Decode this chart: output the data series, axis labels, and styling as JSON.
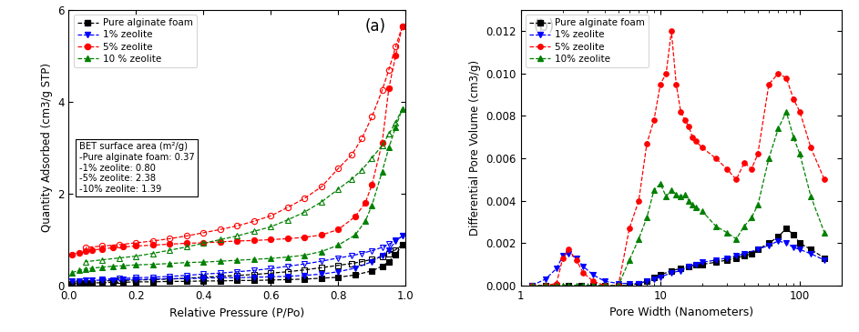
{
  "panel_a": {
    "title": "(a)",
    "xlabel": "Relative Pressure (P/Po)",
    "ylabel": "Quantity Adsorbed (cm3/g STP)",
    "xlim": [
      0.0,
      1.0
    ],
    "ylim": [
      0,
      6
    ],
    "yticks": [
      0,
      2,
      4,
      6
    ],
    "bet_text": "BET surface area (m²/g)\n-Pure alginate foam: 0.37\n-1% zeolite: 0.80\n-5% zeolite: 2.38\n-10% zeolite: 1.39",
    "series": {
      "pure_ads": {
        "x": [
          0.01,
          0.03,
          0.05,
          0.07,
          0.1,
          0.13,
          0.16,
          0.2,
          0.25,
          0.3,
          0.35,
          0.4,
          0.45,
          0.5,
          0.55,
          0.6,
          0.65,
          0.7,
          0.75,
          0.8,
          0.85,
          0.9,
          0.93,
          0.95,
          0.97,
          0.99
        ],
        "y": [
          0.04,
          0.05,
          0.05,
          0.06,
          0.06,
          0.07,
          0.07,
          0.08,
          0.08,
          0.09,
          0.09,
          0.1,
          0.1,
          0.11,
          0.11,
          0.12,
          0.13,
          0.14,
          0.16,
          0.18,
          0.23,
          0.32,
          0.42,
          0.52,
          0.68,
          0.88
        ],
        "color": "black",
        "marker": "s",
        "filled": true
      },
      "pure_des": {
        "x": [
          0.99,
          0.97,
          0.95,
          0.93,
          0.9,
          0.87,
          0.84,
          0.8,
          0.75,
          0.7,
          0.65,
          0.6,
          0.55,
          0.5,
          0.45,
          0.4,
          0.35,
          0.3,
          0.25,
          0.2,
          0.15,
          0.1
        ],
        "y": [
          0.88,
          0.78,
          0.7,
          0.63,
          0.57,
          0.52,
          0.48,
          0.44,
          0.39,
          0.34,
          0.3,
          0.27,
          0.24,
          0.22,
          0.2,
          0.18,
          0.16,
          0.14,
          0.13,
          0.12,
          0.11,
          0.1
        ],
        "color": "black",
        "marker": "s",
        "filled": false
      },
      "zeo1_ads": {
        "x": [
          0.01,
          0.03,
          0.05,
          0.07,
          0.1,
          0.13,
          0.16,
          0.2,
          0.25,
          0.3,
          0.35,
          0.4,
          0.45,
          0.5,
          0.55,
          0.6,
          0.65,
          0.7,
          0.75,
          0.8,
          0.85,
          0.9,
          0.93,
          0.95,
          0.97,
          0.99
        ],
        "y": [
          0.09,
          0.1,
          0.11,
          0.11,
          0.12,
          0.12,
          0.13,
          0.13,
          0.14,
          0.15,
          0.15,
          0.16,
          0.17,
          0.17,
          0.18,
          0.19,
          0.2,
          0.22,
          0.25,
          0.3,
          0.38,
          0.52,
          0.66,
          0.78,
          0.96,
          1.08
        ],
        "color": "blue",
        "marker": "v",
        "filled": true
      },
      "zeo1_des": {
        "x": [
          0.99,
          0.97,
          0.95,
          0.93,
          0.9,
          0.87,
          0.84,
          0.8,
          0.75,
          0.7,
          0.65,
          0.6,
          0.55,
          0.5,
          0.45,
          0.4,
          0.35,
          0.3,
          0.25,
          0.2,
          0.15,
          0.1
        ],
        "y": [
          1.08,
          0.98,
          0.9,
          0.83,
          0.76,
          0.7,
          0.65,
          0.6,
          0.53,
          0.47,
          0.42,
          0.37,
          0.33,
          0.3,
          0.27,
          0.25,
          0.22,
          0.2,
          0.18,
          0.17,
          0.15,
          0.14
        ],
        "color": "blue",
        "marker": "v",
        "filled": false
      },
      "zeo5_ads": {
        "x": [
          0.01,
          0.03,
          0.05,
          0.07,
          0.1,
          0.13,
          0.16,
          0.2,
          0.25,
          0.3,
          0.35,
          0.4,
          0.45,
          0.5,
          0.55,
          0.6,
          0.65,
          0.7,
          0.75,
          0.8,
          0.85,
          0.88,
          0.9,
          0.93,
          0.95,
          0.97,
          0.99
        ],
        "y": [
          0.68,
          0.72,
          0.75,
          0.77,
          0.8,
          0.82,
          0.84,
          0.86,
          0.88,
          0.9,
          0.92,
          0.93,
          0.95,
          0.97,
          0.98,
          1.0,
          1.02,
          1.05,
          1.1,
          1.22,
          1.5,
          1.8,
          2.2,
          3.1,
          4.3,
          5.0,
          5.65
        ],
        "color": "red",
        "marker": "o",
        "filled": true
      },
      "zeo5_des": {
        "x": [
          0.99,
          0.97,
          0.95,
          0.93,
          0.9,
          0.87,
          0.84,
          0.8,
          0.75,
          0.7,
          0.65,
          0.6,
          0.55,
          0.5,
          0.45,
          0.4,
          0.35,
          0.3,
          0.25,
          0.2,
          0.15,
          0.1,
          0.05
        ],
        "y": [
          5.65,
          5.2,
          4.7,
          4.25,
          3.68,
          3.2,
          2.85,
          2.55,
          2.15,
          1.9,
          1.7,
          1.52,
          1.4,
          1.3,
          1.22,
          1.15,
          1.08,
          1.02,
          0.97,
          0.93,
          0.89,
          0.86,
          0.83
        ],
        "color": "red",
        "marker": "o",
        "filled": false
      },
      "zeo10_ads": {
        "x": [
          0.01,
          0.03,
          0.05,
          0.07,
          0.1,
          0.13,
          0.16,
          0.2,
          0.25,
          0.3,
          0.35,
          0.4,
          0.45,
          0.5,
          0.55,
          0.6,
          0.65,
          0.7,
          0.75,
          0.8,
          0.85,
          0.88,
          0.9,
          0.93,
          0.95,
          0.97,
          0.99
        ],
        "y": [
          0.28,
          0.33,
          0.36,
          0.38,
          0.4,
          0.42,
          0.43,
          0.45,
          0.46,
          0.48,
          0.5,
          0.51,
          0.53,
          0.55,
          0.57,
          0.59,
          0.62,
          0.66,
          0.74,
          0.88,
          1.1,
          1.4,
          1.75,
          2.48,
          3.0,
          3.45,
          3.85
        ],
        "color": "green",
        "marker": "^",
        "filled": true
      },
      "zeo10_des": {
        "x": [
          0.99,
          0.97,
          0.95,
          0.93,
          0.9,
          0.87,
          0.84,
          0.8,
          0.75,
          0.7,
          0.65,
          0.6,
          0.55,
          0.5,
          0.45,
          0.4,
          0.35,
          0.3,
          0.25,
          0.2,
          0.15,
          0.1,
          0.05
        ],
        "y": [
          3.85,
          3.55,
          3.3,
          3.05,
          2.78,
          2.52,
          2.32,
          2.1,
          1.82,
          1.6,
          1.43,
          1.28,
          1.18,
          1.08,
          1.0,
          0.92,
          0.84,
          0.77,
          0.7,
          0.64,
          0.6,
          0.56,
          0.52
        ],
        "color": "green",
        "marker": "^",
        "filled": false
      }
    }
  },
  "panel_b": {
    "title": "(b)",
    "xlabel": "Pore Width (Nanometers)",
    "ylabel": "Differential Pore Volume (cm3/g)",
    "xlim": [
      1,
      200
    ],
    "ylim": [
      0,
      0.013
    ],
    "yticks": [
      0.0,
      0.002,
      0.004,
      0.006,
      0.008,
      0.01,
      0.012
    ],
    "series": {
      "pure": {
        "x": [
          1.2,
          1.5,
          1.8,
          2.2,
          2.7,
          3.3,
          4.0,
          5.0,
          6.0,
          7.0,
          8.0,
          9.0,
          10.0,
          12.0,
          14.0,
          16.0,
          18.0,
          20.0,
          25.0,
          30.0,
          35.0,
          40.0,
          45.0,
          50.0,
          60.0,
          70.0,
          80.0,
          90.0,
          100.0,
          120.0,
          150.0
        ],
        "y": [
          0.0,
          0.0,
          0.0,
          0.0,
          0.0,
          0.0,
          0.0,
          0.0,
          0.0,
          0.0001,
          0.0002,
          0.0004,
          0.0005,
          0.0007,
          0.0008,
          0.0009,
          0.001,
          0.001,
          0.0011,
          0.0012,
          0.0013,
          0.0014,
          0.0015,
          0.0017,
          0.002,
          0.0023,
          0.0027,
          0.0024,
          0.002,
          0.0017,
          0.0013
        ],
        "color": "black",
        "marker": "s"
      },
      "zeo1": {
        "x": [
          1.2,
          1.5,
          1.8,
          2.0,
          2.2,
          2.5,
          2.8,
          3.3,
          4.0,
          5.0,
          6.0,
          7.0,
          8.0,
          9.0,
          10.0,
          12.0,
          14.0,
          16.0,
          18.0,
          20.0,
          25.0,
          30.0,
          35.0,
          40.0,
          50.0,
          60.0,
          70.0,
          80.0,
          90.0,
          100.0,
          120.0,
          150.0
        ],
        "y": [
          0.0,
          0.0003,
          0.0008,
          0.0014,
          0.0015,
          0.0013,
          0.0009,
          0.0005,
          0.0002,
          0.0001,
          0.0001,
          0.0001,
          0.0002,
          0.0003,
          0.0004,
          0.0006,
          0.0007,
          0.0009,
          0.001,
          0.0011,
          0.0012,
          0.0013,
          0.0014,
          0.0015,
          0.0017,
          0.0019,
          0.0021,
          0.002,
          0.0018,
          0.0017,
          0.0015,
          0.0012
        ],
        "color": "blue",
        "marker": "v"
      },
      "zeo5": {
        "x": [
          1.2,
          1.5,
          1.8,
          2.0,
          2.2,
          2.5,
          2.8,
          3.3,
          4.0,
          5.0,
          6.0,
          7.0,
          8.0,
          9.0,
          10.0,
          11.0,
          12.0,
          13.0,
          14.0,
          15.0,
          16.0,
          17.0,
          18.0,
          20.0,
          25.0,
          30.0,
          35.0,
          40.0,
          45.0,
          50.0,
          60.0,
          70.0,
          80.0,
          90.0,
          100.0,
          120.0,
          150.0
        ],
        "y": [
          0.0,
          0.0,
          0.0001,
          0.0013,
          0.0017,
          0.0012,
          0.0006,
          0.0002,
          0.0,
          0.0,
          0.0027,
          0.004,
          0.0067,
          0.0078,
          0.0095,
          0.01,
          0.012,
          0.0095,
          0.0082,
          0.0078,
          0.0075,
          0.007,
          0.0068,
          0.0065,
          0.006,
          0.0055,
          0.005,
          0.0058,
          0.0055,
          0.0062,
          0.0095,
          0.01,
          0.0098,
          0.0088,
          0.0082,
          0.0065,
          0.005
        ],
        "color": "red",
        "marker": "o"
      },
      "zeo10": {
        "x": [
          1.2,
          1.5,
          1.8,
          2.0,
          2.2,
          2.5,
          2.8,
          3.3,
          4.0,
          5.0,
          6.0,
          7.0,
          8.0,
          9.0,
          10.0,
          11.0,
          12.0,
          13.0,
          14.0,
          15.0,
          16.0,
          17.0,
          18.0,
          20.0,
          25.0,
          30.0,
          35.0,
          40.0,
          45.0,
          50.0,
          60.0,
          70.0,
          80.0,
          90.0,
          100.0,
          120.0,
          150.0
        ],
        "y": [
          0.0,
          0.0,
          0.0,
          0.0,
          0.0,
          0.0,
          0.0,
          0.0,
          0.0,
          0.0,
          0.0012,
          0.0022,
          0.0032,
          0.0045,
          0.0048,
          0.0042,
          0.0045,
          0.0043,
          0.0042,
          0.0043,
          0.004,
          0.0038,
          0.0037,
          0.0035,
          0.0028,
          0.0025,
          0.0022,
          0.0028,
          0.0032,
          0.0038,
          0.006,
          0.0074,
          0.0082,
          0.007,
          0.0062,
          0.0042,
          0.0025
        ],
        "color": "green",
        "marker": "^"
      }
    }
  }
}
